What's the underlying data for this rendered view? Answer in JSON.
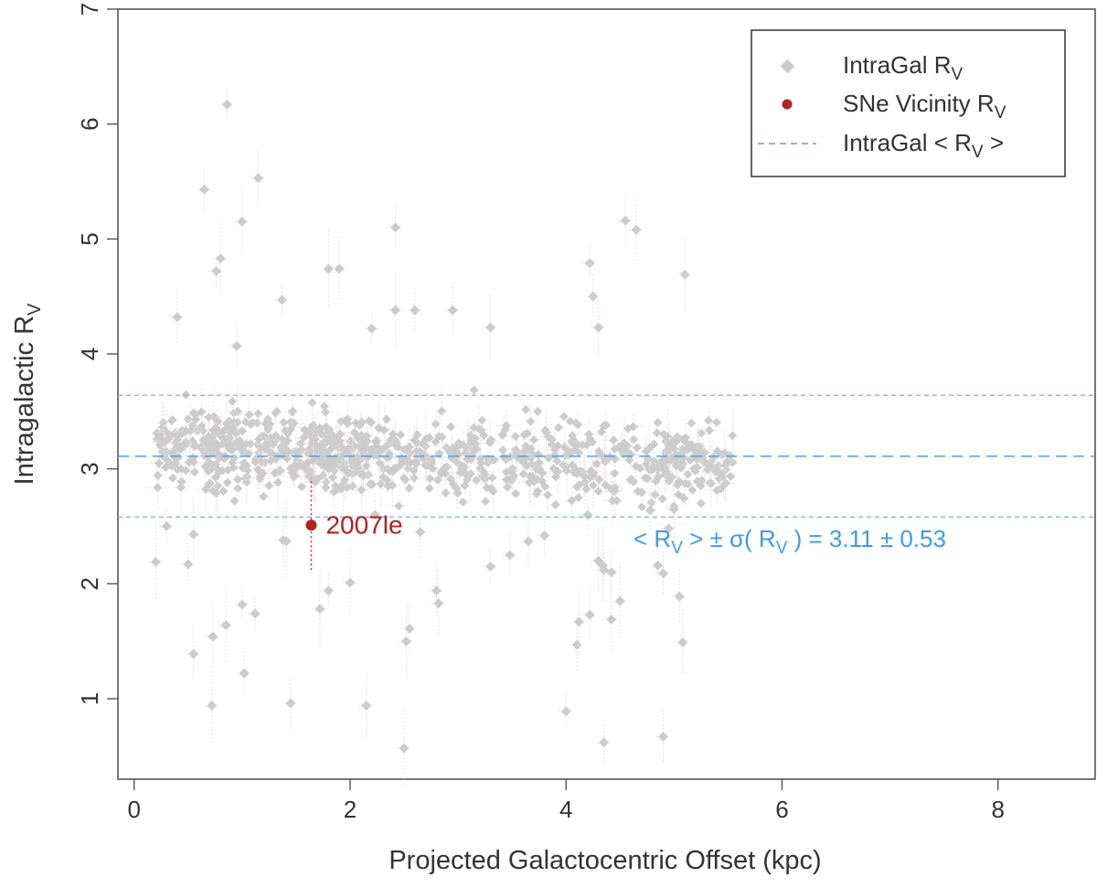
{
  "chart_data": {
    "type": "scatter",
    "title": "",
    "xlabel": "Projected Galactocentric Offset (kpc)",
    "ylabel_main": "Intragalactic R",
    "ylabel_sub": "V",
    "xlim": [
      -0.15,
      8.9
    ],
    "ylim": [
      0.3,
      7.0
    ],
    "xticks": [
      0,
      2,
      4,
      6,
      8
    ],
    "yticks": [
      1,
      2,
      3,
      4,
      5,
      6,
      7
    ],
    "mean_rv": 3.11,
    "sigma_rv": 0.53,
    "stat_label": {
      "lead": "< R",
      "sub1": "V",
      "mid": " > ± σ( R",
      "sub2": "V",
      "tail": " ) =  ",
      "value": "3.11 ± 0.53"
    },
    "highlight": {
      "name": "2007le",
      "x": 1.64,
      "y": 2.51,
      "err_low": 0.39,
      "err_high": 0.41
    },
    "legend": [
      {
        "marker": "diamond",
        "color": "#cccccc",
        "main": "IntraGal R",
        "sub": "V",
        "tail": ""
      },
      {
        "marker": "circle",
        "color": "#b22222",
        "main": "SNe Vicinity R",
        "sub": "V",
        "tail": ""
      },
      {
        "marker": "dashed-line",
        "color": "#4aa3f0",
        "main": "IntraGal < R",
        "sub": "V",
        "tail": " >"
      }
    ],
    "series": [
      {
        "name": "IntraGal R_V (outliers)",
        "x": [
          0.86,
          0.65,
          1.15,
          1.0,
          0.8,
          0.76,
          2.42,
          4.55,
          4.65,
          5.1,
          4.22,
          4.25,
          0.4,
          1.9,
          1.8,
          1.37,
          2.6,
          2.95,
          3.3,
          2.42,
          2.2,
          0.95,
          4.3,
          0.55,
          0.2,
          0.3,
          0.5,
          0.55,
          0.73,
          0.85,
          1.12,
          2.23,
          2.65,
          2.0,
          1.72,
          1.8,
          2.55,
          2.8,
          2.82,
          2.52,
          3.3,
          3.48,
          3.65,
          4.3,
          4.34,
          4.35,
          4.42,
          4.22,
          4.42,
          4.5,
          4.85,
          4.9,
          5.05,
          5.08,
          5.0,
          4.95,
          4.78,
          4.1,
          4.12,
          0.72,
          1.0,
          1.02,
          1.45,
          2.15,
          2.5,
          4.0,
          4.35,
          4.9,
          1.38,
          1.41,
          4.2,
          3.8
        ],
        "y": [
          6.17,
          5.43,
          5.53,
          5.15,
          4.83,
          4.72,
          5.1,
          5.16,
          5.08,
          4.69,
          4.79,
          4.5,
          4.32,
          4.74,
          4.74,
          4.47,
          4.38,
          4.38,
          4.23,
          4.38,
          4.22,
          4.07,
          4.23,
          2.43,
          2.19,
          2.5,
          2.17,
          1.39,
          1.54,
          1.64,
          1.74,
          2.6,
          2.45,
          2.01,
          1.78,
          1.94,
          1.61,
          1.94,
          1.83,
          1.5,
          2.15,
          2.25,
          2.37,
          2.2,
          2.16,
          2.12,
          2.1,
          1.73,
          1.69,
          1.85,
          2.16,
          2.09,
          1.89,
          1.49,
          2.65,
          2.48,
          2.64,
          1.47,
          1.67,
          0.94,
          1.82,
          1.22,
          0.96,
          0.94,
          0.57,
          0.89,
          0.62,
          0.67,
          2.38,
          2.37,
          2.6,
          2.42
        ]
      }
    ]
  }
}
